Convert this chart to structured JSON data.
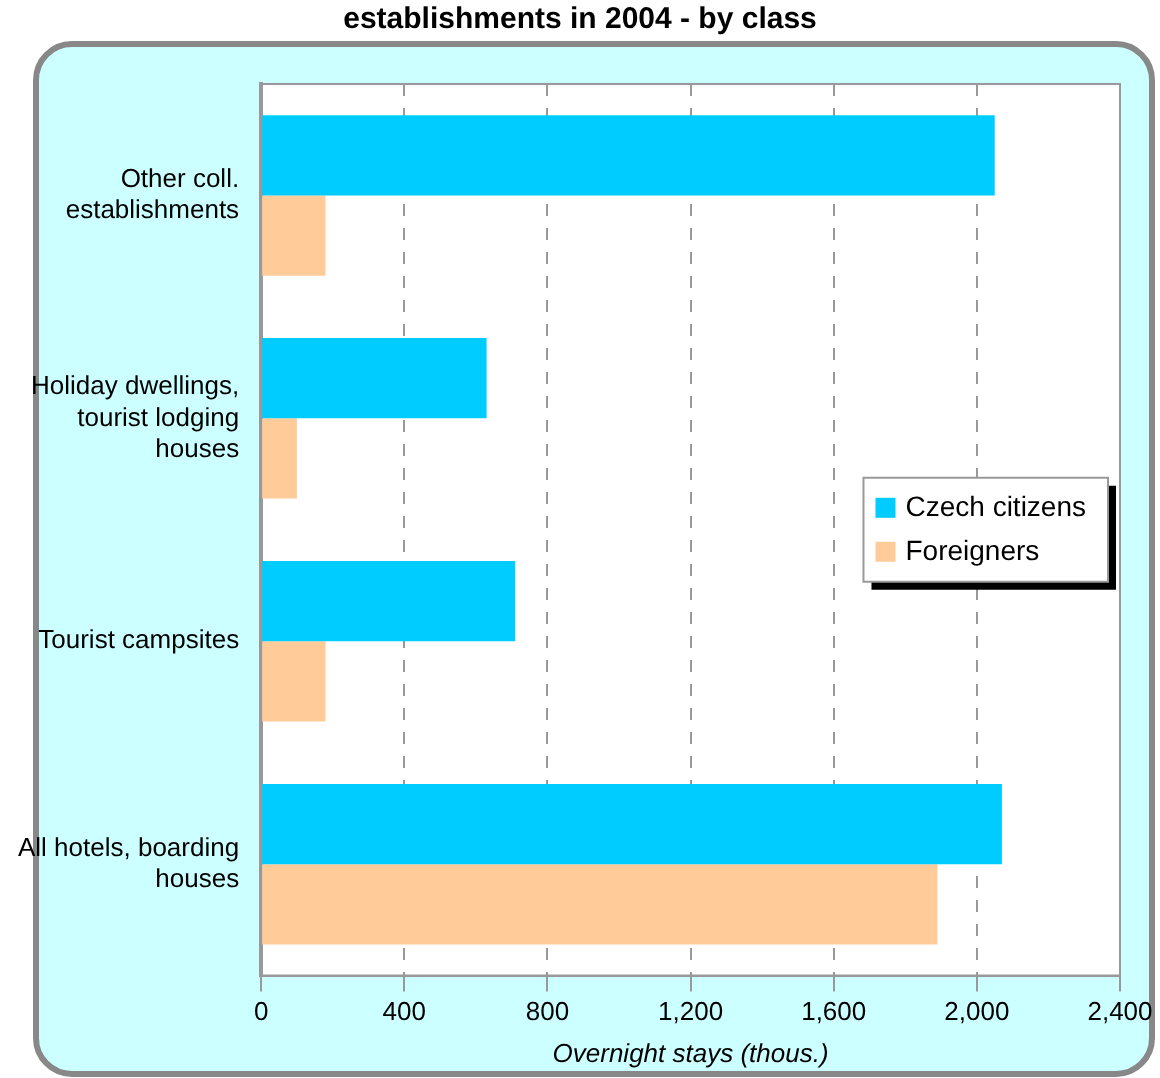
{
  "chart_data": {
    "type": "bar",
    "orientation": "horizontal",
    "title": "establishments in 2004 - by class",
    "xlabel": "Overnight stays (thous.)",
    "categories": [
      "Other coll. establishments",
      "Holiday dwellings, tourist lodging houses",
      "Tourist campsites",
      "All hotels, boarding houses"
    ],
    "series": [
      {
        "name": "Czech citizens",
        "color": "#00ccff",
        "values": [
          2050,
          630,
          710,
          2070
        ]
      },
      {
        "name": "Foreigners",
        "color": "#ffcc99",
        "values": [
          180,
          100,
          180,
          1890
        ]
      }
    ],
    "xlim": [
      0,
      2400
    ],
    "xticks": [
      0,
      400,
      800,
      {
        "value": 1200,
        "label": "1,200"
      },
      {
        "value": 1600,
        "label": "1,600"
      },
      {
        "value": 2000,
        "label": "2,000"
      },
      {
        "value": 2400,
        "label": "2,400"
      }
    ],
    "grid": "x",
    "legend": "right"
  }
}
